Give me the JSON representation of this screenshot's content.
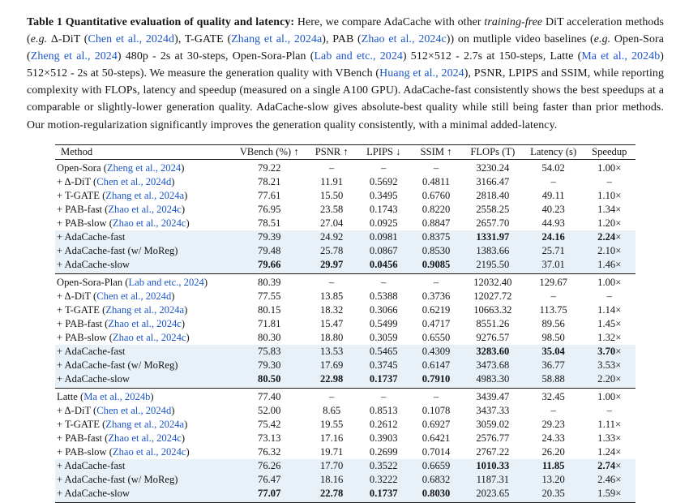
{
  "colors": {
    "citation_blue": "#1b54c8",
    "row_highlight": "#e8f1f8"
  },
  "caption": {
    "segments": [
      {
        "t": "Table 1  ",
        "b": true
      },
      {
        "t": "Quantitative evaluation of quality and latency: ",
        "b": true
      },
      {
        "t": "Here, we compare AdaCache with other "
      },
      {
        "t": "training-free",
        "i": true
      },
      {
        "t": " DiT acceleration methods ("
      },
      {
        "t": "e.g.",
        "i": true
      },
      {
        "t": " Δ-DiT ("
      },
      {
        "t": "Chen et al., 2024d",
        "link": true
      },
      {
        "t": "), T-GATE ("
      },
      {
        "t": "Zhang et al., 2024a",
        "link": true
      },
      {
        "t": "), PAB ("
      },
      {
        "t": "Zhao et al., 2024c",
        "link": true
      },
      {
        "t": ")) on mutliple video baselines ("
      },
      {
        "t": "e.g.",
        "i": true
      },
      {
        "t": " Open-Sora ("
      },
      {
        "t": "Zheng et al., 2024",
        "link": true
      },
      {
        "t": ") 480p - 2s at 30-steps, Open-Sora-Plan ("
      },
      {
        "t": "Lab and etc., 2024",
        "link": true
      },
      {
        "t": ") 512×512 - 2.7s at 150-steps, Latte ("
      },
      {
        "t": "Ma et al., 2024b",
        "link": true
      },
      {
        "t": ") 512×512 - 2s at 50-steps). We measure the generation quality with VBench ("
      },
      {
        "t": "Huang et al., 2024",
        "link": true
      },
      {
        "t": "), PSNR, LPIPS and SSIM, while reporting complexity with FLOPs, latency and speedup (measured on a single A100 GPU). AdaCache-fast consistently shows the best speedups at a comparable or slightly-lower generation quality. AdaCache-slow gives absolute-best quality while still being faster than prior methods. Our motion-regularization significantly improves the generation quality consistently, with a minimal added-latency."
      }
    ]
  },
  "chart_data": {
    "type": "table",
    "title": "Table 1: Quantitative evaluation of quality and latency",
    "columns": [
      "Method",
      "VBench (%) ↑",
      "PSNR ↑",
      "LPIPS ↓",
      "SSIM ↑",
      "FLOPs (T)",
      "Latency (s)",
      "Speedup"
    ],
    "col_widths_pct": [
      30.5,
      12.8,
      8.7,
      9.2,
      8.9,
      10.6,
      10.3,
      9.0
    ],
    "blocks": [
      {
        "name": "Open-Sora",
        "rows": [
          {
            "method": [
              {
                "t": "Open-Sora ("
              },
              {
                "t": "Zheng et al., 2024",
                "link": true
              },
              {
                "t": ")"
              }
            ],
            "values": [
              "79.22",
              "–",
              "–",
              "–",
              "3230.24",
              "54.02",
              "1.00×"
            ],
            "bold": [],
            "hl": false
          },
          {
            "method": [
              {
                "t": "+ Δ-DiT ("
              },
              {
                "t": "Chen et al., 2024d",
                "link": true
              },
              {
                "t": ")"
              }
            ],
            "values": [
              "78.21",
              "11.91",
              "0.5692",
              "0.4811",
              "3166.47",
              "–",
              "–"
            ],
            "bold": [],
            "hl": false
          },
          {
            "method": [
              {
                "t": "+ T-GATE ("
              },
              {
                "t": "Zhang et al., 2024a",
                "link": true
              },
              {
                "t": ")"
              }
            ],
            "values": [
              "77.61",
              "15.50",
              "0.3495",
              "0.6760",
              "2818.40",
              "49.11",
              "1.10×"
            ],
            "bold": [],
            "hl": false
          },
          {
            "method": [
              {
                "t": "+ PAB-fast ("
              },
              {
                "t": "Zhao et al., 2024c",
                "link": true
              },
              {
                "t": ")"
              }
            ],
            "values": [
              "76.95",
              "23.58",
              "0.1743",
              "0.8220",
              "2558.25",
              "40.23",
              "1.34×"
            ],
            "bold": [],
            "hl": false
          },
          {
            "method": [
              {
                "t": "+ PAB-slow ("
              },
              {
                "t": "Zhao et al., 2024c",
                "link": true
              },
              {
                "t": ")"
              }
            ],
            "values": [
              "78.51",
              "27.04",
              "0.0925",
              "0.8847",
              "2657.70",
              "44.93",
              "1.20×"
            ],
            "bold": [],
            "hl": false
          },
          {
            "method": [
              {
                "t": "+ AdaCache-fast"
              }
            ],
            "values": [
              "79.39",
              "24.92",
              "0.0981",
              "0.8375",
              "1331.97",
              "24.16",
              "2.24×"
            ],
            "bold": [
              4,
              5,
              6
            ],
            "hl": true
          },
          {
            "method": [
              {
                "t": "+ AdaCache-fast (w/ MoReg)"
              }
            ],
            "values": [
              "79.48",
              "25.78",
              "0.0867",
              "0.8530",
              "1383.66",
              "25.71",
              "2.10×"
            ],
            "bold": [],
            "hl": true
          },
          {
            "method": [
              {
                "t": "+ AdaCache-slow"
              }
            ],
            "values": [
              "79.66",
              "29.97",
              "0.0456",
              "0.9085",
              "2195.50",
              "37.01",
              "1.46×"
            ],
            "bold": [
              0,
              1,
              2,
              3
            ],
            "hl": true
          }
        ]
      },
      {
        "name": "Open-Sora-Plan",
        "rows": [
          {
            "method": [
              {
                "t": "Open-Sora-Plan ("
              },
              {
                "t": "Lab and etc., 2024",
                "link": true
              },
              {
                "t": ")"
              }
            ],
            "values": [
              "80.39",
              "–",
              "–",
              "–",
              "12032.40",
              "129.67",
              "1.00×"
            ],
            "bold": [],
            "hl": false
          },
          {
            "method": [
              {
                "t": "+ Δ-DiT ("
              },
              {
                "t": "Chen et al., 2024d",
                "link": true
              },
              {
                "t": ")"
              }
            ],
            "values": [
              "77.55",
              "13.85",
              "0.5388",
              "0.3736",
              "12027.72",
              "–",
              "–"
            ],
            "bold": [],
            "hl": false
          },
          {
            "method": [
              {
                "t": "+ T-GATE ("
              },
              {
                "t": "Zhang et al., 2024a",
                "link": true
              },
              {
                "t": ")"
              }
            ],
            "values": [
              "80.15",
              "18.32",
              "0.3066",
              "0.6219",
              "10663.32",
              "113.75",
              "1.14×"
            ],
            "bold": [],
            "hl": false
          },
          {
            "method": [
              {
                "t": "+ PAB-fast ("
              },
              {
                "t": "Zhao et al., 2024c",
                "link": true
              },
              {
                "t": ")"
              }
            ],
            "values": [
              "71.81",
              "15.47",
              "0.5499",
              "0.4717",
              "8551.26",
              "89.56",
              "1.45×"
            ],
            "bold": [],
            "hl": false
          },
          {
            "method": [
              {
                "t": "+ PAB-slow ("
              },
              {
                "t": "Zhao et al., 2024c",
                "link": true
              },
              {
                "t": ")"
              }
            ],
            "values": [
              "80.30",
              "18.80",
              "0.3059",
              "0.6550",
              "9276.57",
              "98.50",
              "1.32×"
            ],
            "bold": [],
            "hl": false
          },
          {
            "method": [
              {
                "t": "+ AdaCache-fast"
              }
            ],
            "values": [
              "75.83",
              "13.53",
              "0.5465",
              "0.4309",
              "3283.60",
              "35.04",
              "3.70×"
            ],
            "bold": [
              4,
              5,
              6
            ],
            "hl": true
          },
          {
            "method": [
              {
                "t": "+ AdaCache-fast (w/ MoReg)"
              }
            ],
            "values": [
              "79.30",
              "17.69",
              "0.3745",
              "0.6147",
              "3473.68",
              "36.77",
              "3.53×"
            ],
            "bold": [],
            "hl": true
          },
          {
            "method": [
              {
                "t": "+ AdaCache-slow"
              }
            ],
            "values": [
              "80.50",
              "22.98",
              "0.1737",
              "0.7910",
              "4983.30",
              "58.88",
              "2.20×"
            ],
            "bold": [
              0,
              1,
              2,
              3
            ],
            "hl": true
          }
        ]
      },
      {
        "name": "Latte",
        "rows": [
          {
            "method": [
              {
                "t": "Latte ("
              },
              {
                "t": "Ma et al., 2024b",
                "link": true
              },
              {
                "t": ")"
              }
            ],
            "values": [
              "77.40",
              "–",
              "–",
              "–",
              "3439.47",
              "32.45",
              "1.00×"
            ],
            "bold": [],
            "hl": false
          },
          {
            "method": [
              {
                "t": "+ Δ-DiT ("
              },
              {
                "t": "Chen et al., 2024d",
                "link": true
              },
              {
                "t": ")"
              }
            ],
            "values": [
              "52.00",
              "8.65",
              "0.8513",
              "0.1078",
              "3437.33",
              "–",
              "–"
            ],
            "bold": [],
            "hl": false
          },
          {
            "method": [
              {
                "t": "+ T-GATE ("
              },
              {
                "t": "Zhang et al., 2024a",
                "link": true
              },
              {
                "t": ")"
              }
            ],
            "values": [
              "75.42",
              "19.55",
              "0.2612",
              "0.6927",
              "3059.02",
              "29.23",
              "1.11×"
            ],
            "bold": [],
            "hl": false
          },
          {
            "method": [
              {
                "t": "+ PAB-fast ("
              },
              {
                "t": "Zhao et al., 2024c",
                "link": true
              },
              {
                "t": ")"
              }
            ],
            "values": [
              "73.13",
              "17.16",
              "0.3903",
              "0.6421",
              "2576.77",
              "24.33",
              "1.33×"
            ],
            "bold": [],
            "hl": false
          },
          {
            "method": [
              {
                "t": "+ PAB-slow ("
              },
              {
                "t": "Zhao et al., 2024c",
                "link": true
              },
              {
                "t": ")"
              }
            ],
            "values": [
              "76.32",
              "19.71",
              "0.2699",
              "0.7014",
              "2767.22",
              "26.20",
              "1.24×"
            ],
            "bold": [],
            "hl": false
          },
          {
            "method": [
              {
                "t": "+ AdaCache-fast"
              }
            ],
            "values": [
              "76.26",
              "17.70",
              "0.3522",
              "0.6659",
              "1010.33",
              "11.85",
              "2.74×"
            ],
            "bold": [
              4,
              5,
              6
            ],
            "hl": true
          },
          {
            "method": [
              {
                "t": "+ AdaCache-fast (w/ MoReg)"
              }
            ],
            "values": [
              "76.47",
              "18.16",
              "0.3222",
              "0.6832",
              "1187.31",
              "13.20",
              "2.46×"
            ],
            "bold": [],
            "hl": true
          },
          {
            "method": [
              {
                "t": "+ AdaCache-slow"
              }
            ],
            "values": [
              "77.07",
              "22.78",
              "0.1737",
              "0.8030",
              "2023.65",
              "20.35",
              "1.59×"
            ],
            "bold": [
              0,
              1,
              2,
              3
            ],
            "hl": true
          }
        ]
      }
    ]
  }
}
